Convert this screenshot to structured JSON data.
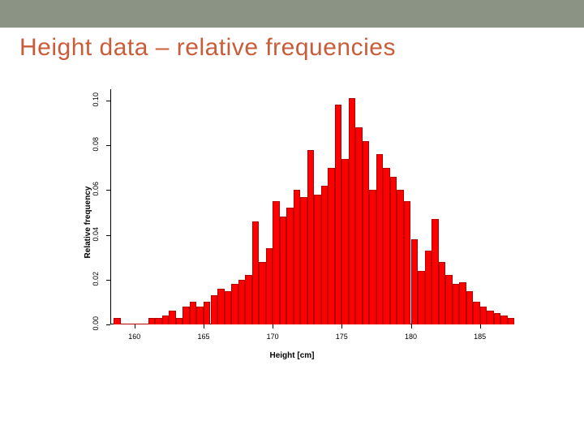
{
  "banner_color": "#8b9385",
  "title": "Height data – relative frequencies",
  "title_color": "#c95d3a",
  "chart": {
    "type": "histogram",
    "xlabel": "Height [cm]",
    "ylabel": "Relative frequency",
    "bar_color": "#ff0000",
    "bar_border": "#b30000",
    "bar_border_width": 0.5,
    "background_color": "#ffffff",
    "axis_color": "#000000",
    "tick_fontsize": 9,
    "label_fontsize": 10,
    "xlim": [
      158.25,
      187.25
    ],
    "ylim": [
      0,
      0.105
    ],
    "xtick_values": [
      160,
      165,
      170,
      175,
      180,
      185
    ],
    "ytick_values": [
      0.0,
      0.02,
      0.04,
      0.06,
      0.08,
      0.1
    ],
    "bin_width": 0.5,
    "bin_start": 158.5,
    "values": [
      0.003,
      0.0,
      0.0,
      0.0,
      0.0,
      0.003,
      0.003,
      0.004,
      0.006,
      0.003,
      0.008,
      0.01,
      0.008,
      0.01,
      0.013,
      0.016,
      0.015,
      0.018,
      0.02,
      0.022,
      0.046,
      0.028,
      0.034,
      0.055,
      0.048,
      0.052,
      0.06,
      0.057,
      0.078,
      0.058,
      0.062,
      0.07,
      0.098,
      0.074,
      0.101,
      0.088,
      0.082,
      0.06,
      0.076,
      0.07,
      0.066,
      0.06,
      0.055,
      0.038,
      0.024,
      0.033,
      0.047,
      0.028,
      0.022,
      0.018,
      0.019,
      0.015,
      0.01,
      0.008,
      0.006,
      0.005,
      0.004,
      0.003
    ]
  }
}
